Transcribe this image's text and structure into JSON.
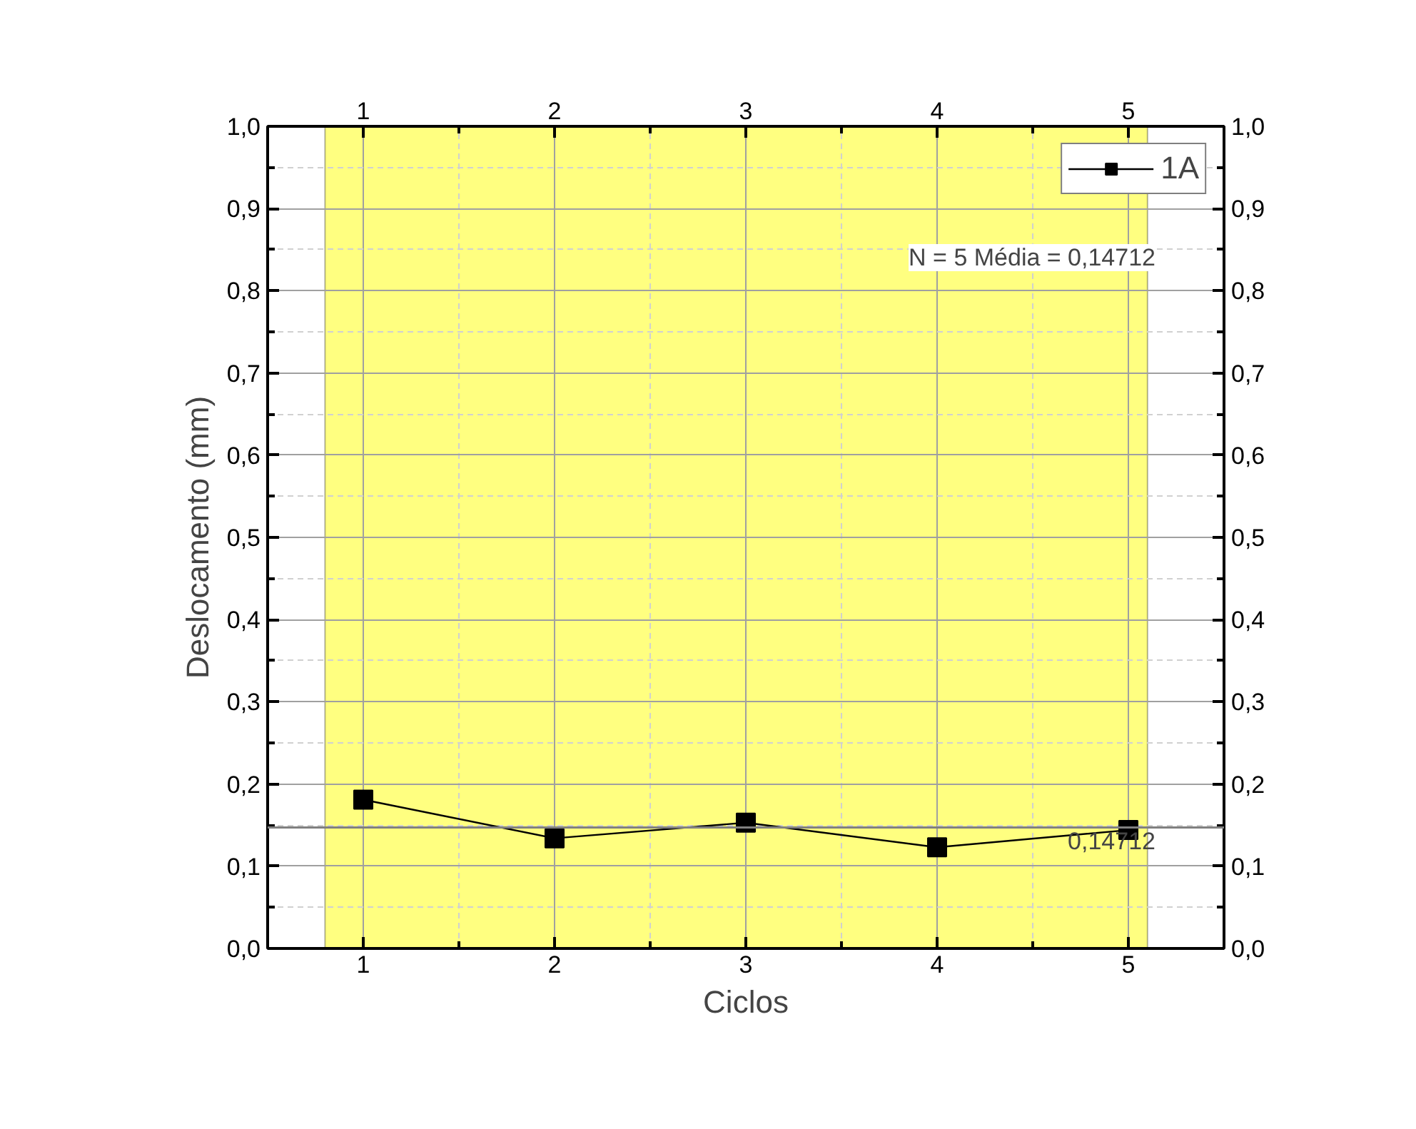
{
  "chart_data": {
    "type": "line",
    "xlabel": "Ciclos",
    "ylabel": "Deslocamento (mm)",
    "x": [
      1,
      2,
      3,
      4,
      5
    ],
    "series": [
      {
        "name": "1A",
        "color": "#000000",
        "values": [
          0.181,
          0.134,
          0.153,
          0.123,
          0.144
        ]
      }
    ],
    "xlim": [
      0.5,
      5.5
    ],
    "xticks": [
      1,
      2,
      3,
      4,
      5
    ],
    "x2lim": [
      0.5,
      5.5
    ],
    "x2ticks": [
      1,
      2,
      3,
      4,
      5
    ],
    "y2lim": [
      0,
      1
    ],
    "y2ticks": [
      {
        "value": 0,
        "label": "0,0"
      },
      {
        "value": 0.1,
        "label": "0,1"
      },
      {
        "value": 0.2,
        "label": "0,2"
      },
      {
        "value": 0.3,
        "label": "0,3"
      },
      {
        "value": 0.4,
        "label": "0,4"
      },
      {
        "value": 0.5,
        "label": "0,5"
      },
      {
        "value": 0.6,
        "label": "0,6"
      },
      {
        "value": 0.7,
        "label": "0,7"
      },
      {
        "value": 0.8,
        "label": "0,8"
      },
      {
        "value": 0.9,
        "label": "0,9"
      },
      {
        "value": 1.0,
        "label": "1,0"
      }
    ],
    "ylim": [
      0,
      1
    ],
    "yticks": [
      {
        "value": 0,
        "label": "0,0"
      },
      {
        "value": 0.1,
        "label": "0,1"
      },
      {
        "value": 0.2,
        "label": "0,2"
      },
      {
        "value": 0.3,
        "label": "0,3"
      },
      {
        "value": 0.4,
        "label": "0,4"
      },
      {
        "value": 0.5,
        "label": "0,5"
      },
      {
        "value": 0.6,
        "label": "0,6"
      },
      {
        "value": 0.7,
        "label": "0,7"
      },
      {
        "value": 0.8,
        "label": "0,8"
      },
      {
        "value": 0.9,
        "label": "0,9"
      },
      {
        "value": 1.0,
        "label": "1,0"
      }
    ],
    "ref_lines": [
      {
        "axis": "y",
        "value": 0.14712,
        "label": "0,14712",
        "color": "#808080"
      }
    ],
    "bands": [
      {
        "axis": "x",
        "from": 0.8,
        "to": 5.1,
        "label": null,
        "color": "#ffff80"
      }
    ],
    "annotations": [
      "N = 5 Média = 0,14712"
    ],
    "grid": true,
    "legend": "top right",
    "marker": "square",
    "line_style": "solid"
  }
}
